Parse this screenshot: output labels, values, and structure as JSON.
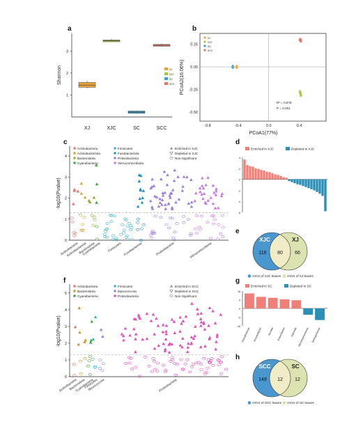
{
  "figure": {
    "panel_labels": [
      "a",
      "b",
      "c",
      "d",
      "e",
      "f",
      "g",
      "h"
    ]
  },
  "chart_data": [
    {
      "panel": "a",
      "type": "box",
      "ylabel": "Shannon",
      "categories": [
        "XJ",
        "XJC",
        "SC",
        "SCC"
      ],
      "colors": [
        "#E8A33A",
        "#A8C24A",
        "#3C9FD0",
        "#E8766B"
      ],
      "legend": [
        "XJ",
        "XJC",
        "SC",
        "SCC"
      ],
      "ylim": [
        0,
        3.8
      ],
      "yticks": [
        1,
        2,
        3
      ],
      "boxes": [
        {
          "q1": 1.35,
          "median": 1.45,
          "q3": 1.57,
          "min": 1.3,
          "max": 1.65
        },
        {
          "q1": 3.44,
          "median": 3.47,
          "q3": 3.5,
          "min": 3.42,
          "max": 3.56
        },
        {
          "q1": 0.17,
          "median": 0.22,
          "q3": 0.27,
          "min": 0.14,
          "max": 0.3
        },
        {
          "q1": 3.22,
          "median": 3.26,
          "q3": 3.3,
          "min": 3.2,
          "max": 3.34
        }
      ]
    },
    {
      "panel": "b",
      "type": "scatter",
      "xlabel": "PCoA1(77%)",
      "ylabel": "PCoA2(16.06%)",
      "xlim": [
        -0.9,
        0.75
      ],
      "ylim": [
        -0.6,
        0.37
      ],
      "xticks": [
        -0.8,
        -0.4,
        0.0,
        0.4
      ],
      "yticks": [
        -0.5,
        -0.25,
        0.0,
        0.25
      ],
      "legend": [
        "XJ",
        "XJC",
        "SC",
        "SCC"
      ],
      "colors": [
        "#E8A33A",
        "#A8C24A",
        "#3C9FD0",
        "#E8766B"
      ],
      "points": [
        {
          "group": "XJ",
          "x": -0.42,
          "y": 0.0
        },
        {
          "group": "XJC",
          "x": 0.41,
          "y": -0.28
        },
        {
          "group": "XJC",
          "x": 0.42,
          "y": -0.31
        },
        {
          "group": "SC",
          "x": -0.47,
          "y": 0.0
        },
        {
          "group": "SCC",
          "x": 0.41,
          "y": 0.3
        },
        {
          "group": "SCC",
          "x": 0.42,
          "y": 0.29
        }
      ],
      "annotation": [
        "R² = 0.975",
        "P = 0.001"
      ]
    },
    {
      "panel": "c",
      "type": "scatter",
      "ylabel": "-log10(Pvalue)",
      "ylim": [
        0,
        4.2
      ],
      "yticks": [
        0,
        1,
        2,
        3,
        4
      ],
      "threshold": 1.3,
      "legend_phyla": [
        {
          "name": "Actinobacteria",
          "color": "#E8766B"
        },
        {
          "name": "Actinobacteriota",
          "color": "#D4A33A"
        },
        {
          "name": "Bacteroidota",
          "color": "#9AA832"
        },
        {
          "name": "Cyanobacteria",
          "color": "#3DA83A"
        },
        {
          "name": "Firmicutes",
          "color": "#3BB5C8"
        },
        {
          "name": "Fusobacteriota",
          "color": "#2A8FC0"
        },
        {
          "name": "Proteobacteria",
          "color": "#9B7FE0"
        },
        {
          "name": "Verrucomicrobiota",
          "color": "#C77BE0"
        }
      ],
      "legend_status": [
        "Enriched in XJC",
        "Depleted in XJC",
        "Non-Significant"
      ],
      "xcategories": [
        "Actinobacteria",
        "Actinobacteriota",
        "Bacteroidota",
        "Cyanobacteria",
        "Firmicutes",
        "Fusobacteriota",
        "Proteobacteria",
        "Verrucomicrobiota"
      ]
    },
    {
      "panel": "d",
      "type": "bar",
      "legend": [
        {
          "name": "Enriched in XJC",
          "color": "#F07F78"
        },
        {
          "name": "Depleted in XJC",
          "color": "#2B8FB8"
        }
      ],
      "ylim": [
        -6,
        4
      ],
      "yticks": [
        4,
        2,
        0,
        -2,
        -4,
        -6
      ],
      "values": [
        3.6,
        2.6,
        2.4,
        2.3,
        2.0,
        1.9,
        1.7,
        1.6,
        1.4,
        1.3,
        1.1,
        0.9,
        0.8,
        0.6,
        0.4,
        0.3,
        -0.3,
        -0.5,
        -0.7,
        -0.9,
        -1.0,
        -1.2,
        -1.4,
        -1.6,
        -1.8,
        -2.0,
        -2.3,
        -2.6,
        -3.0,
        -5.8
      ]
    },
    {
      "panel": "e",
      "type": "venn",
      "sets": [
        {
          "name": "XJC",
          "count": 116,
          "color": "#4A96CF"
        },
        {
          "name": "XJ",
          "count": 66,
          "color": "#D9DFA8"
        }
      ],
      "overlap": 80,
      "legend": [
        "ASVs of XJC leaves",
        "ASVs of XJ leaves"
      ]
    },
    {
      "panel": "f",
      "type": "scatter",
      "ylabel": "-log10(Pvalue)",
      "ylim": [
        0,
        5.2
      ],
      "yticks": [
        0,
        1,
        2,
        3,
        4,
        5
      ],
      "threshold": 1.3,
      "legend_phyla": [
        {
          "name": "Actinobacteria",
          "color": "#E8766B"
        },
        {
          "name": "Bacteroidota",
          "color": "#C89A2A"
        },
        {
          "name": "Cyanobacteria",
          "color": "#3DA83A"
        },
        {
          "name": "Firmicutes",
          "color": "#3BB5C8"
        },
        {
          "name": "Myxococcota",
          "color": "#9B7FE0"
        },
        {
          "name": "Proteobacteria",
          "color": "#E04FB8"
        }
      ],
      "legend_status": [
        "Enriched in SCC",
        "Depleted in SCC",
        "Non-Significant"
      ],
      "xcategories": [
        "Actinobacteria",
        "Bacteroidota",
        "Cyanobacteria",
        "Firmicutes",
        "Myxococcota",
        "Proteobacteria"
      ]
    },
    {
      "panel": "g",
      "type": "bar",
      "legend": [
        {
          "name": "Enriched in SC",
          "color": "#F07F78"
        },
        {
          "name": "Depleted in SC",
          "color": "#2B8FB8"
        }
      ],
      "ylim": [
        -18,
        18
      ],
      "yticks": [
        18,
        9,
        0,
        -9,
        -18
      ],
      "categories": [
        "Pseudomonas",
        "Acinetobacter",
        "Serratia",
        "Enterobacter",
        "Rahnella",
        "Stenotrophomonas",
        "Sphingomonas"
      ],
      "values": [
        15.5,
        12.0,
        11.0,
        9.5,
        8.5,
        -6.5,
        -12.0
      ]
    },
    {
      "panel": "h",
      "type": "venn",
      "sets": [
        {
          "name": "SCC",
          "count": 148,
          "color": "#4A96CF"
        },
        {
          "name": "SC",
          "count": 12,
          "color": "#D9DFA8"
        }
      ],
      "overlap": 12,
      "legend": [
        "ASVs of SCC leaves",
        "ASVs of SC leaves"
      ]
    }
  ]
}
